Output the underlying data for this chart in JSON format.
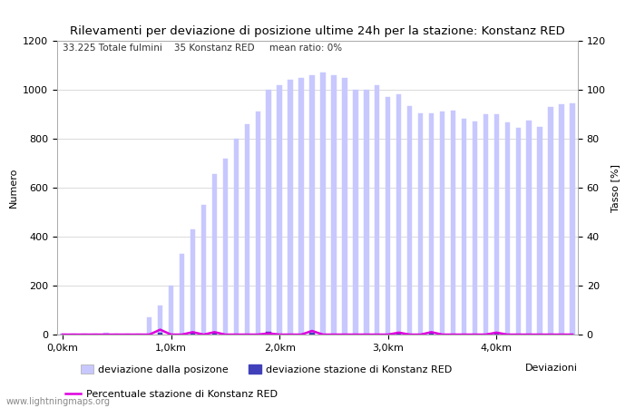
{
  "title": "Rilevamenti per deviazione di posizione ultime 24h per la stazione: Konstanz RED",
  "subtitle": "33.225 Totale fulmini    35 Konstanz RED     mean ratio: 0%",
  "xlabel": "Deviazioni",
  "ylabel_left": "Numero",
  "ylabel_right": "Tasso [%]",
  "ylim_left": [
    0,
    1200
  ],
  "ylim_right": [
    0,
    120
  ],
  "yticks_left": [
    0,
    200,
    400,
    600,
    800,
    1000,
    1200
  ],
  "yticks_right": [
    0,
    20,
    40,
    60,
    80,
    100,
    120
  ],
  "xtick_labels": [
    "0,0km",
    "1,0km",
    "2,0km",
    "3,0km",
    "4,0km"
  ],
  "xtick_positions": [
    0,
    10,
    20,
    30,
    40
  ],
  "watermark": "www.lightningmaps.org",
  "legend_entries": [
    "deviazione dalla posizone",
    "deviazione stazione di Konstanz RED",
    "Percentuale stazione di Konstanz RED"
  ],
  "bar_color_total": "#c8c8ff",
  "bar_color_station": "#4040bb",
  "line_color": "#dd00dd",
  "background_color": "#ffffff",
  "grid_color": "#cccccc",
  "total_bars": [
    2,
    3,
    4,
    5,
    6,
    4,
    5,
    5,
    70,
    120,
    200,
    330,
    430,
    530,
    655,
    720,
    800,
    860,
    910,
    1000,
    1020,
    1040,
    1050,
    1060,
    1070,
    1060,
    1050,
    1000,
    1000,
    1020,
    970,
    980,
    935,
    905,
    905,
    910,
    915,
    880,
    870,
    900,
    900,
    865,
    845,
    875,
    850,
    930,
    940,
    945
  ],
  "station_bars": [
    0,
    0,
    0,
    0,
    0,
    0,
    0,
    0,
    0,
    8,
    0,
    0,
    8,
    0,
    8,
    0,
    0,
    0,
    0,
    12,
    0,
    0,
    0,
    8,
    0,
    0,
    0,
    0,
    0,
    0,
    0,
    8,
    0,
    0,
    8,
    0,
    0,
    0,
    0,
    0,
    8,
    0,
    0,
    0,
    0,
    0,
    0,
    0
  ],
  "percentage_line": [
    0,
    0,
    0,
    0,
    0,
    0,
    0,
    0,
    0,
    2,
    0,
    0,
    1,
    0,
    1,
    0,
    0,
    0,
    0,
    0.5,
    0,
    0,
    0,
    1.5,
    0,
    0,
    0,
    0,
    0,
    0,
    0,
    0.8,
    0,
    0,
    1,
    0,
    0,
    0,
    0,
    0,
    0.8,
    0,
    0,
    0,
    0,
    0,
    0,
    0
  ]
}
